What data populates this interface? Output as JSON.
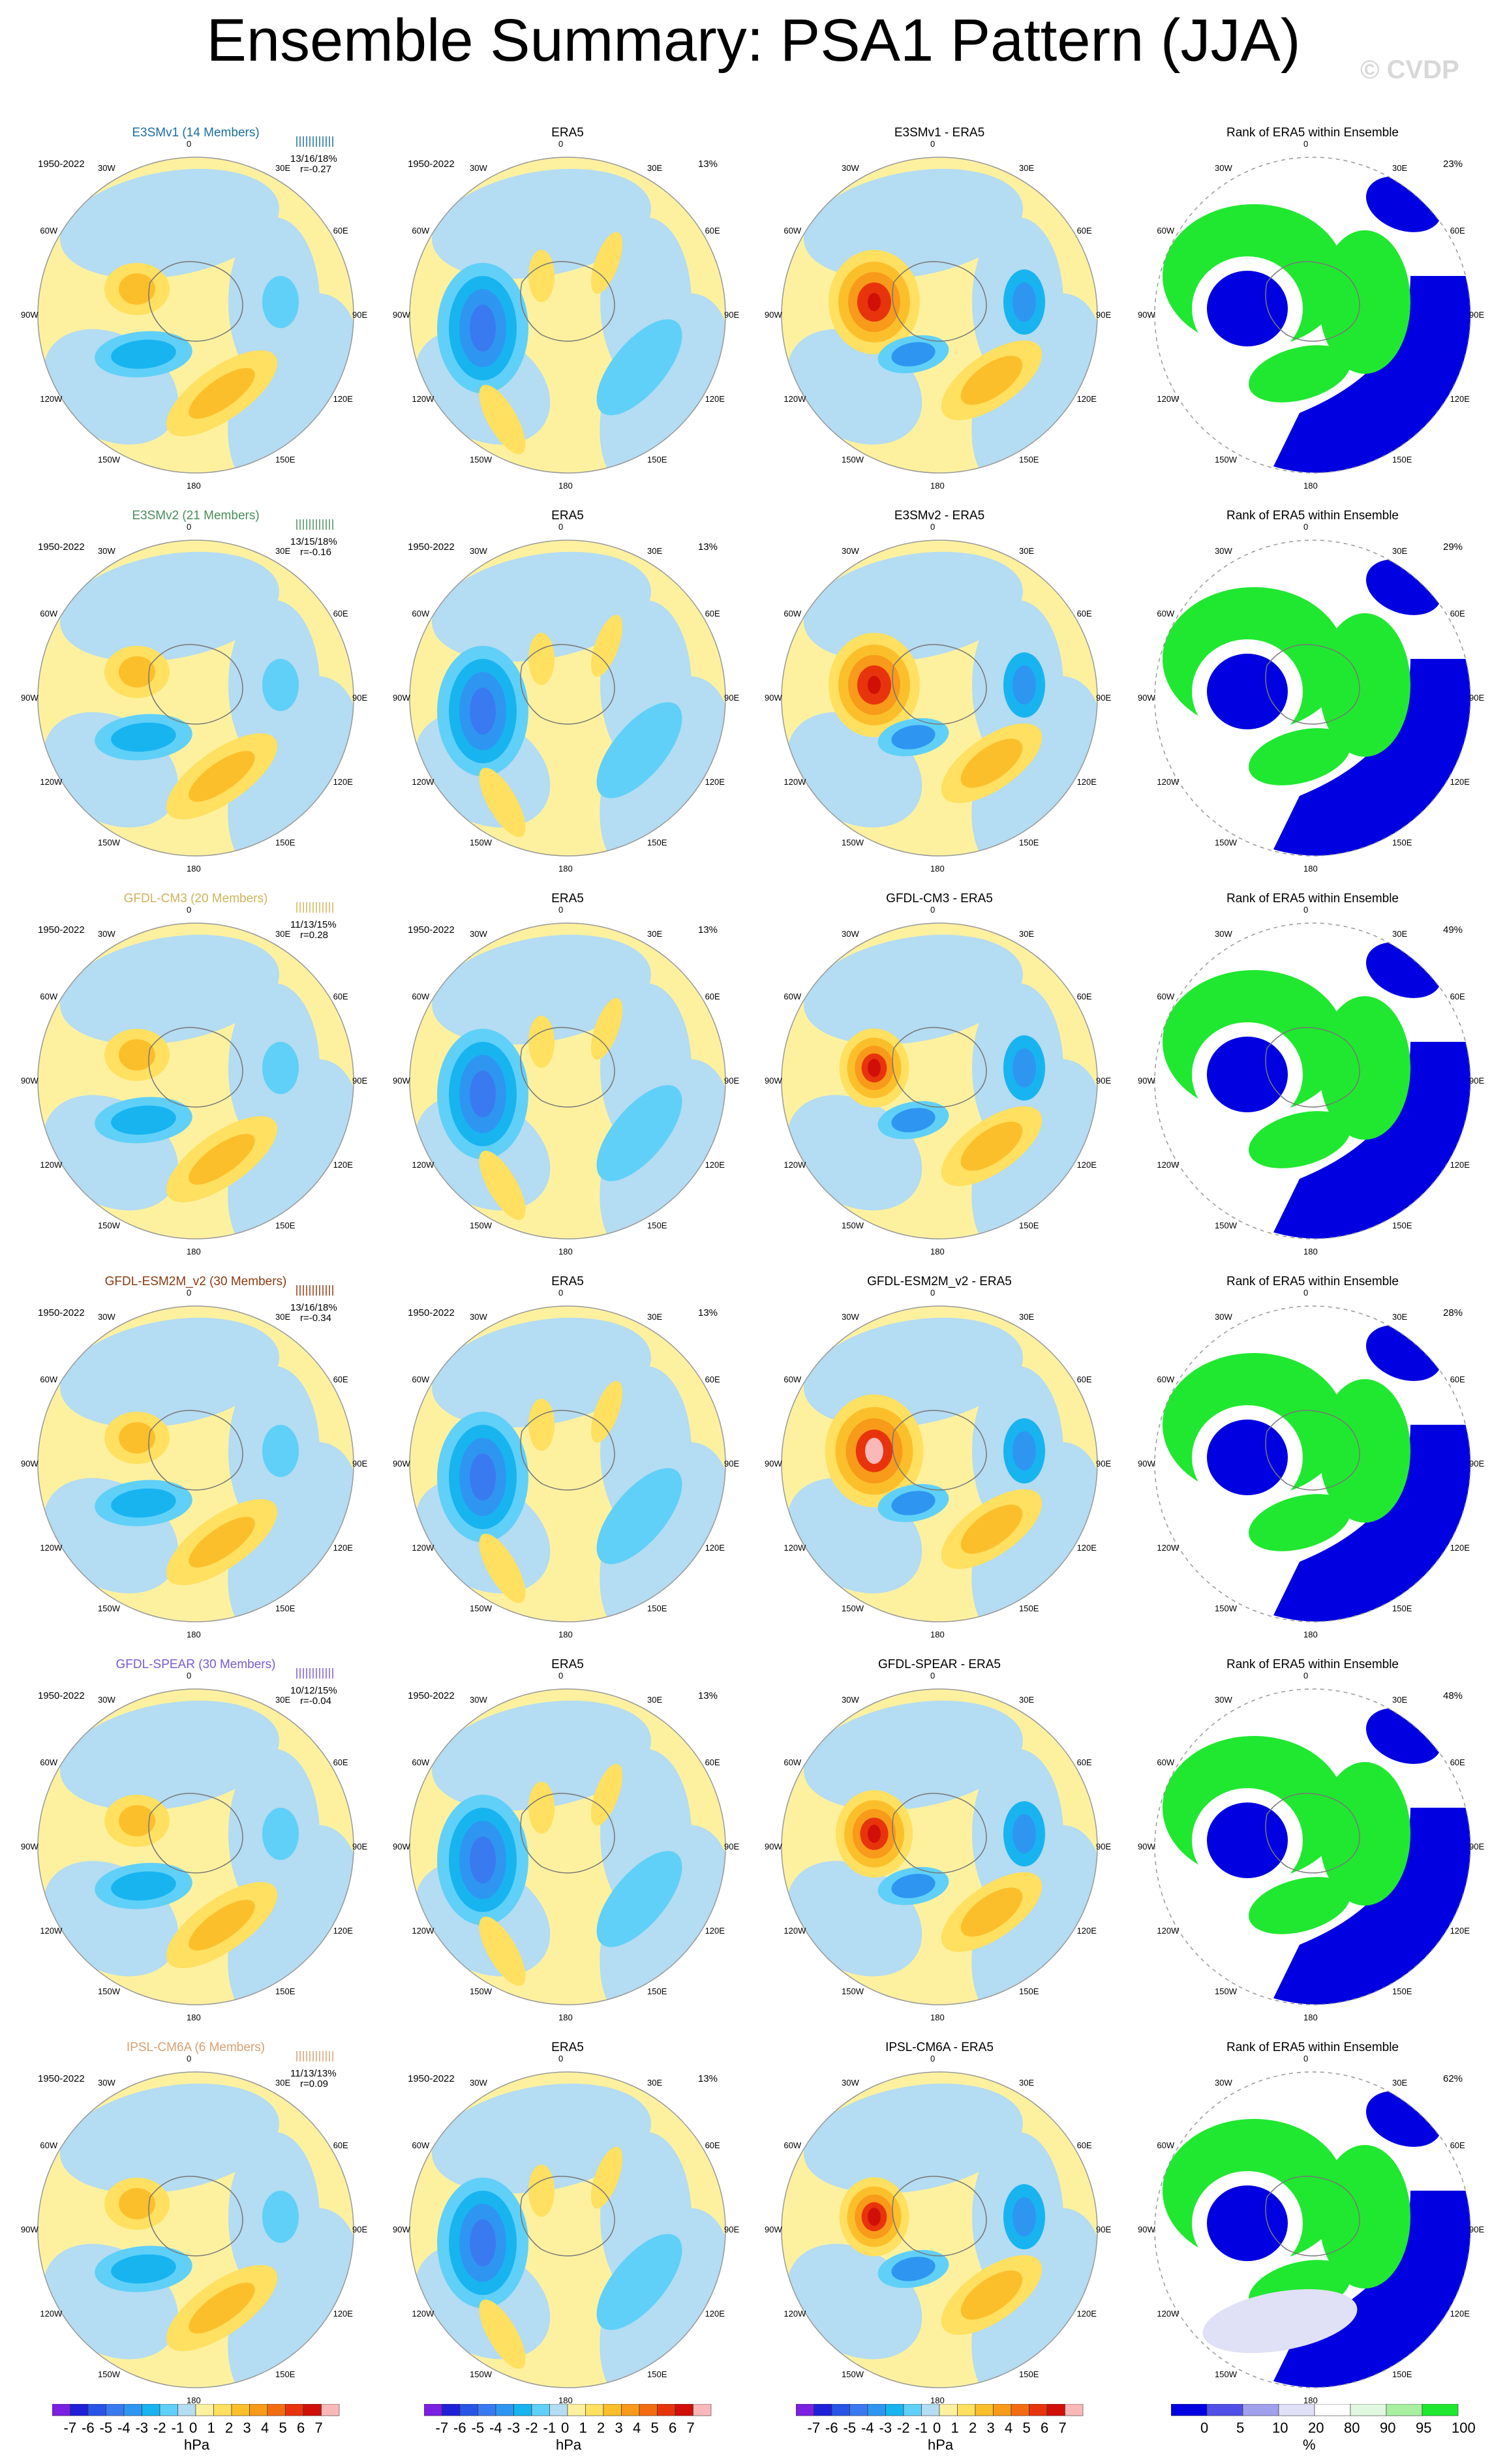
{
  "title": "Ensemble Summary: PSA1 Pattern (JJA)",
  "watermark": "© CVDP",
  "column_titles": {
    "era5": "ERA5",
    "rank": "Rank of ERA5 within Ensemble",
    "diff_suffix": " - ERA5"
  },
  "period": "1950-2022",
  "lon_labels": [
    "0",
    "30E",
    "60E",
    "90E",
    "120E",
    "150E",
    "180",
    "150W",
    "120W",
    "90W",
    "60W",
    "30W"
  ],
  "era5_pct": "13%",
  "rows": [
    {
      "model": "E3SMv1",
      "label": "E3SMv1 (14 Members)",
      "color": "#1c6e9e",
      "stat1": "13/16/18%",
      "stat2": "r=-0.27",
      "diff_title": "E3SMv1 - ERA5",
      "rank_pct": "23%"
    },
    {
      "model": "E3SMv2",
      "label": "E3SMv2 (21 Members)",
      "color": "#4a8c5c",
      "stat1": "13/15/18%",
      "stat2": "r=-0.16",
      "diff_title": "E3SMv2 - ERA5",
      "rank_pct": "29%"
    },
    {
      "model": "GFDL-CM3",
      "label": "GFDL-CM3 (20 Members)",
      "color": "#d1b25a",
      "stat1": "11/13/15%",
      "stat2": "r=0.28",
      "diff_title": "GFDL-CM3 - ERA5",
      "rank_pct": "49%"
    },
    {
      "model": "GFDL-ESM2M_v2",
      "label": "GFDL-ESM2M_v2 (30 Members)",
      "color": "#8a3a12",
      "stat1": "13/16/18%",
      "stat2": "r=-0.34",
      "diff_title": "GFDL-ESM2M_v2 - ERA5",
      "rank_pct": "28%"
    },
    {
      "model": "GFDL-SPEAR",
      "label": "GFDL-SPEAR (30 Members)",
      "color": "#7a5bd0",
      "stat1": "10/12/15%",
      "stat2": "r=-0.04",
      "diff_title": "GFDL-SPEAR - ERA5",
      "rank_pct": "48%"
    },
    {
      "model": "IPSL-CM6A",
      "label": "IPSL-CM6A (6 Members)",
      "color": "#d8a070",
      "stat1": "11/13/13%",
      "stat2": "r=0.09",
      "diff_title": "IPSL-CM6A - ERA5",
      "rank_pct": "62%"
    }
  ],
  "colorbar_hpa": {
    "ticks": [
      "-7",
      "-6",
      "-5",
      "-4",
      "-3",
      "-2",
      "-1",
      "0",
      "1",
      "2",
      "3",
      "4",
      "5",
      "6",
      "7"
    ],
    "unit": "hPa",
    "colors": [
      "#7b1fe0",
      "#2020d8",
      "#2855e8",
      "#3a7af0",
      "#2e96f0",
      "#18b4f0",
      "#60d0f8",
      "#b4dcf2",
      "#fdf1a0",
      "#ffe060",
      "#fcbf2c",
      "#f89a1a",
      "#f46c12",
      "#e8340c",
      "#d01008",
      "#fbb8b8"
    ]
  },
  "colorbar_rank": {
    "ticks": [
      "0",
      "5",
      "10",
      "20",
      "80",
      "90",
      "95",
      "100"
    ],
    "unit": "%",
    "colors": [
      "#0000e0",
      "#5050e8",
      "#a0a0ec",
      "#e0e0f6",
      "#ffffff",
      "#e0f8e0",
      "#a8f0a0",
      "#20e830"
    ]
  }
}
